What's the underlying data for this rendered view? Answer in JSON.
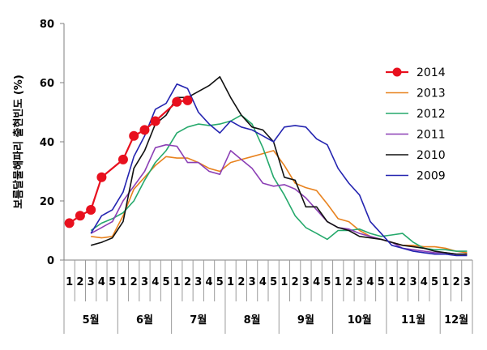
{
  "chart_data": {
    "type": "line",
    "ylabel": "보름달물해파리 출현빈도 (%)",
    "ylim": [
      0,
      80
    ],
    "yticks": [
      0,
      20,
      40,
      60,
      80
    ],
    "x": [
      "5월-1",
      "5월-2",
      "5월-3",
      "5월-4",
      "5월-5",
      "6월-1",
      "6월-2",
      "6월-3",
      "6월-4",
      "6월-5",
      "7월-1",
      "7월-2",
      "7월-3",
      "7월-4",
      "7월-5",
      "8월-1",
      "8월-2",
      "8월-3",
      "8월-4",
      "8월-5",
      "9월-1",
      "9월-2",
      "9월-3",
      "9월-4",
      "9월-5",
      "10월-1",
      "10월-2",
      "10월-3",
      "10월-4",
      "10월-5",
      "11월-1",
      "11월-2",
      "11월-3",
      "11월-4",
      "11월-5",
      "12월-1",
      "12월-2",
      "12월-3"
    ],
    "week_labels": [
      "1",
      "2",
      "3",
      "4",
      "5",
      "1",
      "2",
      "3",
      "4",
      "5",
      "1",
      "2",
      "3",
      "4",
      "5",
      "1",
      "2",
      "3",
      "4",
      "5",
      "1",
      "2",
      "3",
      "4",
      "5",
      "1",
      "2",
      "3",
      "4",
      "5",
      "1",
      "2",
      "3",
      "4",
      "5",
      "1",
      "2",
      "3"
    ],
    "months": [
      {
        "label": "5월",
        "start": 0,
        "end": 4
      },
      {
        "label": "6월",
        "start": 5,
        "end": 9
      },
      {
        "label": "7월",
        "start": 10,
        "end": 14
      },
      {
        "label": "8월",
        "start": 15,
        "end": 19
      },
      {
        "label": "9월",
        "start": 20,
        "end": 24
      },
      {
        "label": "10월",
        "start": 25,
        "end": 29
      },
      {
        "label": "11월",
        "start": 30,
        "end": 34
      },
      {
        "label": "12월",
        "start": 35,
        "end": 37
      }
    ],
    "legend_position": "right",
    "grid": false,
    "series": [
      {
        "name": "2014",
        "color": "#e8101e",
        "markers": true,
        "values": [
          12.5,
          15,
          17,
          28,
          null,
          34,
          42,
          44,
          47,
          null,
          53.5,
          54,
          null,
          null,
          null,
          null,
          null,
          null,
          null,
          null,
          null,
          null,
          null,
          null,
          null,
          null,
          null,
          null,
          null,
          null,
          null,
          null,
          null,
          null,
          null,
          null,
          null,
          null
        ]
      },
      {
        "name": "2013",
        "color": "#e8821e",
        "markers": false,
        "values": [
          null,
          null,
          8,
          7.5,
          8,
          15,
          24,
          28,
          32,
          35,
          34.5,
          34.5,
          33,
          31,
          30,
          33,
          34,
          35,
          36,
          37,
          32,
          26,
          24.5,
          23.5,
          19,
          14,
          13,
          10,
          8,
          7,
          6,
          5,
          5,
          4.5,
          4.5,
          4,
          3,
          2.5
        ]
      },
      {
        "name": "2012",
        "color": "#26a96c",
        "markers": false,
        "values": [
          null,
          null,
          10,
          12.5,
          14,
          16,
          20,
          27,
          33,
          37,
          43,
          45,
          46,
          45.5,
          46,
          47,
          49,
          46,
          38,
          28,
          22,
          15,
          11,
          9,
          7,
          10,
          10,
          10.5,
          9,
          8,
          8.5,
          9,
          6,
          4,
          3.5,
          3.5,
          3,
          3
        ]
      },
      {
        "name": "2011",
        "color": "#8b3fb5",
        "markers": false,
        "values": [
          null,
          null,
          9,
          11,
          13,
          20,
          25,
          30,
          38,
          39,
          38.5,
          33,
          33,
          30,
          29,
          37,
          34,
          31,
          26,
          25,
          25.5,
          24,
          21,
          17,
          13,
          11,
          10.5,
          9,
          8,
          7,
          6,
          4,
          3.5,
          3,
          2.5,
          2.5,
          2,
          2
        ]
      },
      {
        "name": "2010",
        "color": "#111111",
        "markers": false,
        "values": [
          null,
          null,
          5,
          6,
          7.5,
          13,
          31,
          37,
          46,
          49,
          55,
          55,
          57,
          59,
          62,
          55,
          49,
          45,
          44,
          40,
          28,
          27,
          18,
          18,
          13,
          11,
          10,
          8,
          7.5,
          7,
          6,
          5,
          4.5,
          4,
          3,
          2.5,
          2,
          2
        ]
      },
      {
        "name": "2009",
        "color": "#2424b0",
        "markers": false,
        "values": [
          null,
          null,
          9,
          15,
          17,
          23,
          35,
          42,
          51,
          53,
          59.5,
          58,
          50,
          46,
          43,
          47,
          45,
          44,
          42,
          40,
          45,
          45.5,
          45,
          41,
          39,
          31,
          26,
          22,
          13,
          9,
          5,
          4,
          3,
          2.5,
          2,
          2,
          1.5,
          1.5
        ]
      }
    ]
  }
}
